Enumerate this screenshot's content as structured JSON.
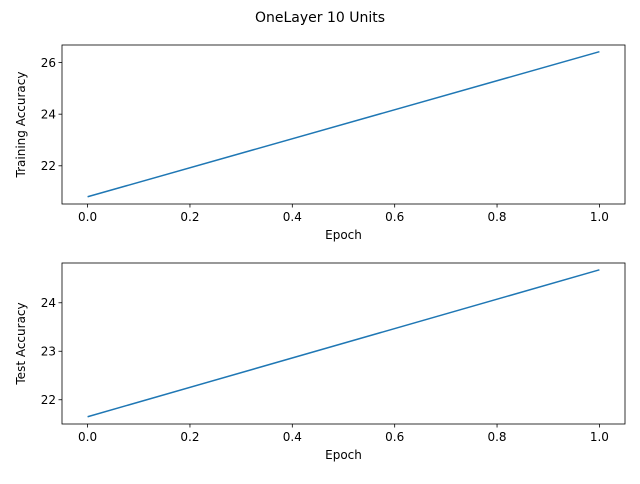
{
  "figure": {
    "title": "OneLayer 10 Units"
  },
  "chart_data": [
    {
      "type": "line",
      "xlabel": "Epoch",
      "ylabel": "Training Accuracy",
      "xlim": [
        -0.05,
        1.05
      ],
      "ylim": [
        20.52,
        26.68
      ],
      "xticks": [
        0.0,
        0.2,
        0.4,
        0.6,
        0.8,
        1.0
      ],
      "xtick_labels": [
        "0.0",
        "0.2",
        "0.4",
        "0.6",
        "0.8",
        "1.0"
      ],
      "yticks": [
        22,
        24,
        26
      ],
      "ytick_labels": [
        "22",
        "24",
        "26"
      ],
      "grid": false,
      "series": [
        {
          "x": [
            0,
            1
          ],
          "y": [
            20.8,
            26.42
          ],
          "color": "#1f77b4"
        }
      ]
    },
    {
      "type": "line",
      "xlabel": "Epoch",
      "ylabel": "Test Accuracy",
      "xlim": [
        -0.05,
        1.05
      ],
      "ylim": [
        21.5,
        24.82
      ],
      "xticks": [
        0.0,
        0.2,
        0.4,
        0.6,
        0.8,
        1.0
      ],
      "xtick_labels": [
        "0.0",
        "0.2",
        "0.4",
        "0.6",
        "0.8",
        "1.0"
      ],
      "yticks": [
        22,
        23,
        24
      ],
      "ytick_labels": [
        "22",
        "23",
        "24"
      ],
      "grid": false,
      "series": [
        {
          "x": [
            0,
            1
          ],
          "y": [
            21.65,
            24.68
          ],
          "color": "#1f77b4"
        }
      ]
    }
  ]
}
